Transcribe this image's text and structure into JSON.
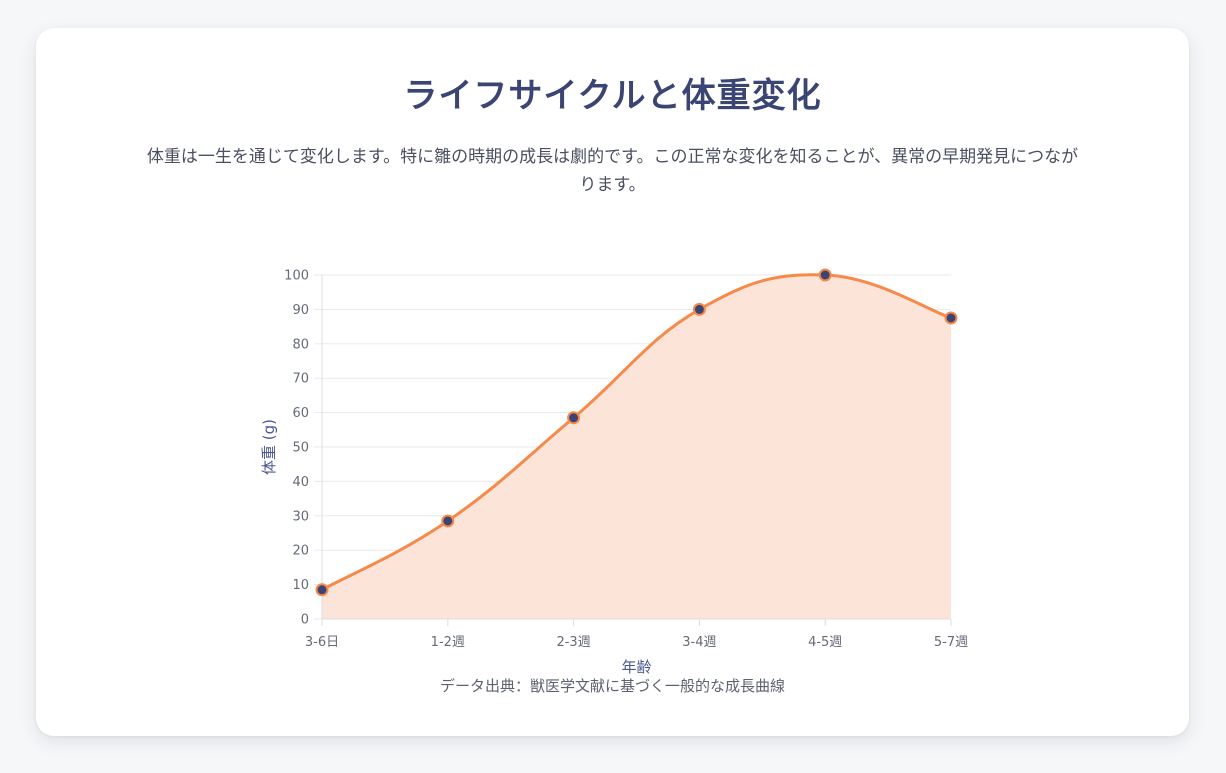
{
  "header": {
    "title": "ライフサイクルと体重変化",
    "description": "体重は一生を通じて変化します。特に雛の時期の成長は劇的です。この正常な変化を知ることが、異常の早期発見につながります。"
  },
  "footer": {
    "source": "データ出典：獣医学文献に基づく一般的な成長曲線"
  },
  "chart_data": {
    "type": "area",
    "categories": [
      "3-6日",
      "1-2週",
      "2-3週",
      "3-4週",
      "4-5週",
      "5-7週"
    ],
    "values": [
      8.5,
      28.5,
      58.5,
      90,
      100,
      87.5
    ],
    "xlabel": "年齢",
    "ylabel": "体重 (g)",
    "ylim": [
      0,
      100
    ],
    "yticks": [
      0,
      10,
      20,
      30,
      40,
      50,
      60,
      70,
      80,
      90,
      100
    ],
    "grid": true,
    "legend": "none",
    "colors": {
      "line": "#f58a4b",
      "fill": "#fde3d6",
      "point_fill": "#3b4573",
      "point_stroke": "#f58a4b",
      "axis_label": "#4a5690",
      "tick_label": "#666b78",
      "grid": "#e9eaee"
    }
  }
}
